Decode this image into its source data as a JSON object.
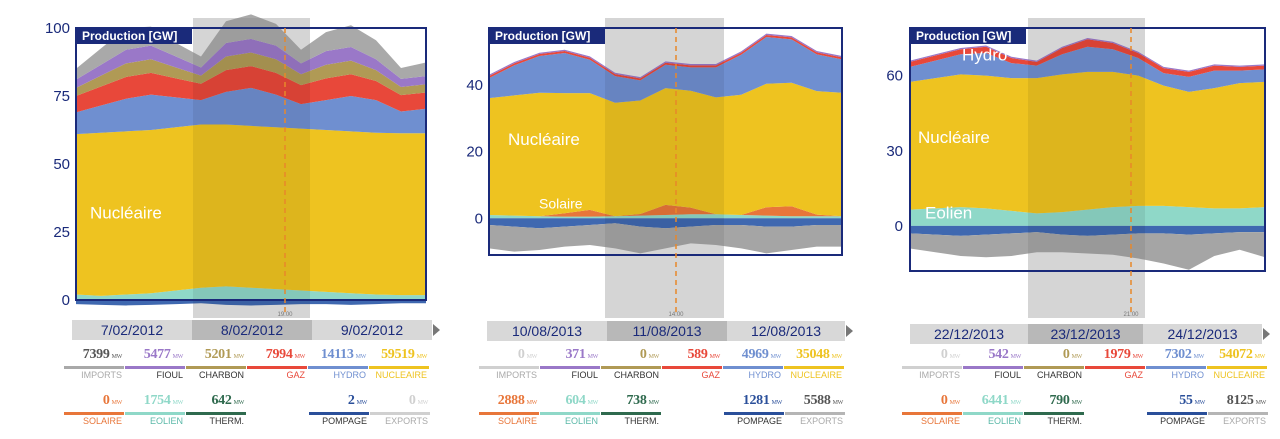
{
  "chart_data": [
    {
      "type": "area",
      "title": "Production [GW]",
      "ylim": [
        0,
        100
      ],
      "yticks": [
        0,
        25,
        50,
        75,
        100
      ],
      "days": [
        "7/02/2012",
        "8/02/2012",
        "9/02/2012"
      ],
      "cursor_time": "19:00",
      "annotations": [
        "Nucléaire"
      ],
      "series": [
        {
          "key": "SOLAIRE",
          "values": [
            0,
            0,
            0,
            0,
            0,
            0,
            0,
            0,
            0,
            0,
            0,
            0,
            0,
            0,
            0
          ]
        },
        {
          "key": "EOLIEN",
          "values": [
            2.0,
            1.5,
            2.0,
            2.5,
            3.5,
            4.5,
            5.0,
            4.5,
            4.0,
            3.5,
            3.0,
            2.5,
            2.0,
            1.8,
            1.8
          ]
        },
        {
          "key": "NUCLEAIRE",
          "values": [
            59,
            60,
            60,
            60,
            60,
            60,
            59.5,
            59.5,
            59.5,
            59.5,
            59.5,
            59.5,
            59.5,
            59.5,
            59.5
          ]
        },
        {
          "key": "HYDRO",
          "values": [
            8,
            10,
            12,
            13,
            11,
            9,
            12,
            14,
            12,
            9,
            11,
            13,
            12,
            8,
            9
          ]
        },
        {
          "key": "GAZ",
          "values": [
            6,
            7,
            8,
            8,
            7,
            6,
            8,
            8,
            8,
            7,
            8,
            8,
            7,
            6,
            6
          ]
        },
        {
          "key": "CHARBON",
          "values": [
            3,
            4,
            5,
            5,
            4,
            3,
            5,
            5,
            5,
            4,
            5,
            5,
            4,
            3,
            3
          ]
        },
        {
          "key": "FIOUL",
          "values": [
            3,
            4,
            5,
            5,
            4,
            3,
            5,
            5,
            5,
            4,
            5,
            5,
            4,
            3,
            3
          ]
        },
        {
          "key": "IMPORTS",
          "values": [
            4,
            6,
            8,
            7,
            5,
            4,
            8,
            9,
            8,
            5,
            7,
            8,
            7,
            4,
            5
          ]
        }
      ],
      "negative": {
        "POMPAGE": [
          1.5,
          1.8,
          2.0,
          1.8,
          1.5,
          1.2,
          1.8,
          2.0,
          1.8,
          1.5,
          1.5,
          1.8,
          1.5,
          1.2,
          1.2
        ],
        "EXPORTS": [
          0,
          0,
          0,
          0,
          0,
          0,
          0,
          0,
          0,
          0,
          0,
          0,
          0,
          0,
          0
        ]
      },
      "stats_row1": [
        {
          "key": "IMPORTS",
          "value": "7399",
          "unit": "MW",
          "label": "IMPORTS"
        },
        {
          "key": "FIOUL",
          "value": "5477",
          "unit": "MW",
          "label": "FIOUL"
        },
        {
          "key": "CHARBON",
          "value": "5201",
          "unit": "MW",
          "label": "CHARBON"
        },
        {
          "key": "GAZ",
          "value": "7994",
          "unit": "MW",
          "label": "GAZ"
        },
        {
          "key": "HYDRO",
          "value": "14113",
          "unit": "MW",
          "label": "HYDRO"
        },
        {
          "key": "NUCLEAIRE",
          "value": "59519",
          "unit": "MW",
          "label": "NUCLEAIRE"
        }
      ],
      "stats_row2": [
        {
          "key": "SOLAIRE",
          "value": "0",
          "unit": "MW",
          "label": "SOLAIRE"
        },
        {
          "key": "EOLIEN",
          "value": "1754",
          "unit": "MW",
          "label": "EOLIEN"
        },
        {
          "key": "THERM",
          "value": "642",
          "unit": "MW",
          "label": "THERM."
        },
        {
          "key": "POMPAGE",
          "value": "2",
          "unit": "MW",
          "label": "POMPAGE"
        },
        {
          "key": "EXPORTS",
          "value": "0",
          "unit": "MW",
          "label": "EXPORTS"
        }
      ]
    },
    {
      "type": "area",
      "title": "Production [GW]",
      "ylim": [
        -11,
        57
      ],
      "yticks": [
        0,
        20,
        40
      ],
      "days": [
        "10/08/2013",
        "11/08/2013",
        "12/08/2013"
      ],
      "cursor_time": "14:00",
      "annotations": [
        "Nucléaire",
        "Solaire"
      ],
      "series": [
        {
          "key": "EOLIEN",
          "values": [
            1.0,
            0.8,
            0.6,
            0.5,
            0.5,
            0.6,
            0.8,
            1.0,
            1.2,
            1.2,
            1.0,
            0.8,
            0.6,
            0.6,
            0.6
          ]
        },
        {
          "key": "SOLAIRE",
          "values": [
            0,
            0,
            0,
            1.0,
            2.0,
            0,
            0.5,
            3.0,
            2.0,
            0,
            0,
            2.5,
            3.0,
            0.5,
            0
          ]
        },
        {
          "key": "NUCLEAIRE",
          "values": [
            35,
            36,
            37,
            36,
            35,
            34,
            34,
            35,
            35,
            35,
            36,
            37,
            37,
            37,
            37
          ]
        },
        {
          "key": "HYDRO",
          "values": [
            6,
            9,
            11,
            12,
            10,
            8,
            6,
            7,
            7,
            9,
            12,
            14,
            13,
            11,
            10
          ]
        },
        {
          "key": "GAZ",
          "values": [
            0.6,
            0.6,
            0.6,
            0.6,
            0.6,
            0.6,
            0.6,
            0.6,
            0.6,
            0.6,
            0.6,
            0.6,
            0.6,
            0.6,
            0.6
          ]
        },
        {
          "key": "FIOUL",
          "values": [
            0.4,
            0.4,
            0.4,
            0.4,
            0.4,
            0.4,
            0.4,
            0.4,
            0.4,
            0.4,
            0.4,
            0.4,
            0.4,
            0.4,
            0.4
          ]
        }
      ],
      "negative": {
        "POMPAGE": [
          2.0,
          2.5,
          3.0,
          2.5,
          2.0,
          1.5,
          2.5,
          3.0,
          2.5,
          2.0,
          2.0,
          2.5,
          2.5,
          2.0,
          2.0
        ],
        "EXPORTS": [
          7.0,
          7.5,
          6.5,
          6.0,
          6.0,
          7.5,
          8.0,
          6.0,
          5.0,
          6.0,
          7.0,
          8.0,
          7.0,
          6.5,
          6.5
        ]
      },
      "stats_row1": [
        {
          "key": "IMPORTS",
          "value": "0",
          "unit": "MW",
          "label": "IMPORTS"
        },
        {
          "key": "FIOUL",
          "value": "371",
          "unit": "MW",
          "label": "FIOUL"
        },
        {
          "key": "CHARBON",
          "value": "0",
          "unit": "MW",
          "label": "CHARBON"
        },
        {
          "key": "GAZ",
          "value": "589",
          "unit": "MW",
          "label": "GAZ"
        },
        {
          "key": "HYDRO",
          "value": "4969",
          "unit": "MW",
          "label": "HYDRO"
        },
        {
          "key": "NUCLEAIRE",
          "value": "35048",
          "unit": "MW",
          "label": "NUCLEAIRE"
        }
      ],
      "stats_row2": [
        {
          "key": "SOLAIRE",
          "value": "2888",
          "unit": "MW",
          "label": "SOLAIRE"
        },
        {
          "key": "EOLIEN",
          "value": "604",
          "unit": "MW",
          "label": "EOLIEN"
        },
        {
          "key": "THERM",
          "value": "738",
          "unit": "MW",
          "label": "THERM."
        },
        {
          "key": "POMPAGE",
          "value": "1281",
          "unit": "MW",
          "label": "POMPAGE"
        },
        {
          "key": "EXPORTS",
          "value": "5588",
          "unit": "MW",
          "label": "EXPORTS"
        }
      ]
    },
    {
      "type": "area",
      "title": "Production [GW]",
      "ylim": [
        -18,
        79
      ],
      "yticks": [
        0,
        30,
        60
      ],
      "days": [
        "22/12/2013",
        "23/12/2013",
        "24/12/2013"
      ],
      "cursor_time": "21:00",
      "annotations": [
        "Hydro",
        "Nucléaire",
        "Eolien"
      ],
      "series": [
        {
          "key": "EOLIEN",
          "values": [
            6.5,
            7.0,
            7.5,
            7.0,
            6.0,
            5.0,
            5.5,
            6.5,
            7.5,
            8.0,
            8.0,
            7.5,
            7.0,
            7.0,
            7.5
          ]
        },
        {
          "key": "NUCLEAIRE",
          "values": [
            51,
            52,
            53,
            53,
            53,
            54,
            55,
            55,
            54,
            52,
            48,
            46,
            48,
            50,
            50
          ]
        },
        {
          "key": "HYDRO",
          "values": [
            6,
            7,
            8,
            9,
            6,
            5,
            8,
            10,
            9,
            7,
            5,
            6,
            7,
            5,
            5
          ]
        },
        {
          "key": "GAZ",
          "values": [
            2,
            2,
            2,
            2.5,
            2,
            1.5,
            2.5,
            3,
            2.5,
            2,
            2,
            2,
            2,
            1.5,
            1.5
          ]
        },
        {
          "key": "FIOUL",
          "values": [
            0.5,
            0.5,
            0.5,
            0.5,
            0.5,
            0.5,
            0.5,
            0.5,
            0.5,
            0.5,
            0.5,
            0.5,
            0.5,
            0.5,
            0.5
          ]
        }
      ],
      "negative": {
        "POMPAGE": [
          3.0,
          3.5,
          4.0,
          3.5,
          3.0,
          2.5,
          3.5,
          4.0,
          3.5,
          3.0,
          3.0,
          3.5,
          3.0,
          2.5,
          2.5
        ],
        "EXPORTS": [
          6,
          7,
          8,
          9,
          9,
          8,
          7,
          7,
          8,
          10,
          12,
          14,
          9,
          7,
          10
        ]
      },
      "stats_row1": [
        {
          "key": "IMPORTS",
          "value": "0",
          "unit": "MW",
          "label": "IMPORTS"
        },
        {
          "key": "FIOUL",
          "value": "542",
          "unit": "MW",
          "label": "FIOUL"
        },
        {
          "key": "CHARBON",
          "value": "0",
          "unit": "MW",
          "label": "CHARBON"
        },
        {
          "key": "GAZ",
          "value": "1979",
          "unit": "MW",
          "label": "GAZ"
        },
        {
          "key": "HYDRO",
          "value": "7302",
          "unit": "MW",
          "label": "HYDRO"
        },
        {
          "key": "NUCLEAIRE",
          "value": "54072",
          "unit": "MW",
          "label": "NUCLEAIRE"
        }
      ],
      "stats_row2": [
        {
          "key": "SOLAIRE",
          "value": "0",
          "unit": "MW",
          "label": "SOLAIRE"
        },
        {
          "key": "EOLIEN",
          "value": "6441",
          "unit": "MW",
          "label": "EOLIEN"
        },
        {
          "key": "THERM",
          "value": "790",
          "unit": "MW",
          "label": "THERM."
        },
        {
          "key": "POMPAGE",
          "value": "55",
          "unit": "MW",
          "label": "POMPAGE"
        },
        {
          "key": "EXPORTS",
          "value": "8125",
          "unit": "MW",
          "label": "EXPORTS"
        }
      ]
    }
  ],
  "colors": {
    "NUCLEAIRE": "#eec320",
    "HYDRO": "#6f8fd0",
    "GAZ": "#e8483a",
    "CHARBON": "#b09a55",
    "FIOUL": "#9a78c8",
    "IMPORTS": "#a9a9a9",
    "EOLIEN": "#8fd8c8",
    "SOLAIRE": "#e8763a",
    "THERM": "#2f6a4e",
    "POMPAGE": "#2a4f9a",
    "EXPORTS": "#b5b5b5",
    "frame": "#1a2a7a",
    "cursor": "#e8882a",
    "zero_value": "#d0d0d0"
  }
}
